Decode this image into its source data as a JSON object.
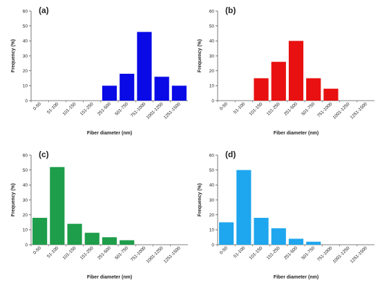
{
  "chart_data": [
    {
      "id": "a",
      "type": "bar",
      "panel_label": "(a)",
      "xlabel": "Fiber diameter (nm)",
      "ylabel": "Frequency (%)",
      "ylim": [
        0,
        60
      ],
      "yticks": [
        0,
        10,
        20,
        30,
        40,
        50,
        60
      ],
      "categories": [
        "0-50",
        "51-100",
        "101-150",
        "151-250",
        "251-500",
        "501-750",
        "751-1000",
        "1001-1250",
        "1251-1500"
      ],
      "values": [
        0,
        0,
        0,
        0,
        10,
        18,
        46,
        16,
        10
      ],
      "color": "#0a0ae6",
      "grid": false
    },
    {
      "id": "b",
      "type": "bar",
      "panel_label": "(b)",
      "xlabel": "Fiber diameter (nm)",
      "ylabel": "Frequency (%)",
      "ylim": [
        0,
        60
      ],
      "yticks": [
        0,
        10,
        20,
        30,
        40,
        50,
        60
      ],
      "categories": [
        "0-50",
        "51-100",
        "101-150",
        "151-250",
        "251-500",
        "501-750",
        "751-1000",
        "1001-1250",
        "1251-1500"
      ],
      "values": [
        0,
        0,
        15,
        26,
        40,
        15,
        8,
        0,
        0
      ],
      "color": "#e81010",
      "grid": false
    },
    {
      "id": "c",
      "type": "bar",
      "panel_label": "(c)",
      "xlabel": "Fiber diameter (nm)",
      "ylabel": "Frequency (%)",
      "ylim": [
        0,
        60
      ],
      "yticks": [
        0,
        10,
        20,
        30,
        40,
        50,
        60
      ],
      "categories": [
        "0-50",
        "51-100",
        "101-150",
        "151-250",
        "251-500",
        "501-750",
        "751-1000",
        "1001-1250",
        "1251-1500"
      ],
      "values": [
        18,
        52,
        14,
        8,
        5,
        3,
        0,
        0,
        0
      ],
      "color": "#1e9e4a",
      "grid": false
    },
    {
      "id": "d",
      "type": "bar",
      "panel_label": "(d)",
      "xlabel": "Fiber diameter (nm)",
      "ylabel": "Frequency (%)",
      "ylim": [
        0,
        60
      ],
      "yticks": [
        0,
        10,
        20,
        30,
        40,
        50,
        60
      ],
      "categories": [
        "0-50",
        "51-100",
        "101-150",
        "151-250",
        "251-500",
        "501-750",
        "751-1000",
        "1001-1250",
        "1251-1500"
      ],
      "values": [
        15,
        50,
        18,
        11,
        4,
        2,
        0,
        0,
        0
      ],
      "color": "#1ea6ee",
      "grid": false
    }
  ]
}
